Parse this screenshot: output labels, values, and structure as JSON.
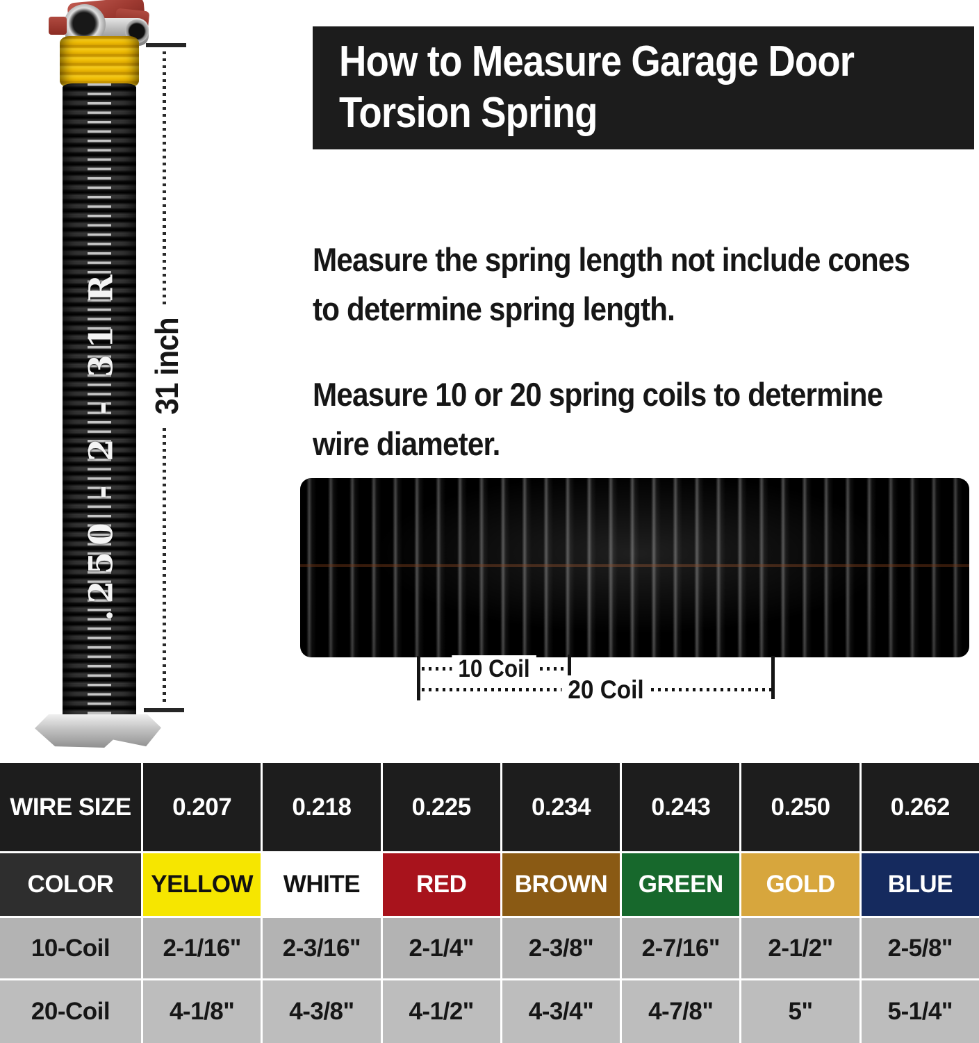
{
  "header": {
    "line1": "How to Measure Garage Door",
    "line2": "Torsion Spring",
    "bg_color": "#1c1c1c"
  },
  "instructions": {
    "p1_line1": "Measure the spring length not include cones",
    "p1_line2": "to determine spring length.",
    "p2_line1": "Measure 10 or 20 spring coils to determine",
    "p2_line2": "wire diameter."
  },
  "spring_photo": {
    "stamp_text": ".250 - 2 - 31 R",
    "length_label": "31 inch",
    "paint_color": "#f0bd05"
  },
  "closeup": {
    "label_10": "10 Coil",
    "label_20": "20 Coil"
  },
  "table": {
    "row_wire": {
      "label": "WIRE SIZE",
      "values": [
        "0.207",
        "0.218",
        "0.225",
        "0.234",
        "0.243",
        "0.250",
        "0.262"
      ]
    },
    "row_color": {
      "label": "COLOR",
      "values": [
        "YELLOW",
        "WHITE",
        "RED",
        "BROWN",
        "GREEN",
        "GOLD",
        "BLUE"
      ],
      "bg": [
        "#f6e600",
        "#ffffff",
        "#a8131c",
        "#8a5a14",
        "#17682c",
        "#d7a63d",
        "#152a5e"
      ],
      "fg": [
        "#111111",
        "#111111",
        "#ffffff",
        "#ffffff",
        "#ffffff",
        "#ffffff",
        "#ffffff"
      ]
    },
    "row_10coil": {
      "label": "10-Coil",
      "values": [
        "2-1/16\"",
        "2-3/16\"",
        "2-1/4\"",
        "2-3/8\"",
        "2-7/16\"",
        "2-1/2\"",
        "2-5/8\""
      ]
    },
    "row_20coil": {
      "label": "20-Coil",
      "values": [
        "4-1/8\"",
        "4-3/8\"",
        "4-1/2\"",
        "4-3/4\"",
        "4-7/8\"",
        "5\"",
        "5-1/4\""
      ]
    }
  }
}
